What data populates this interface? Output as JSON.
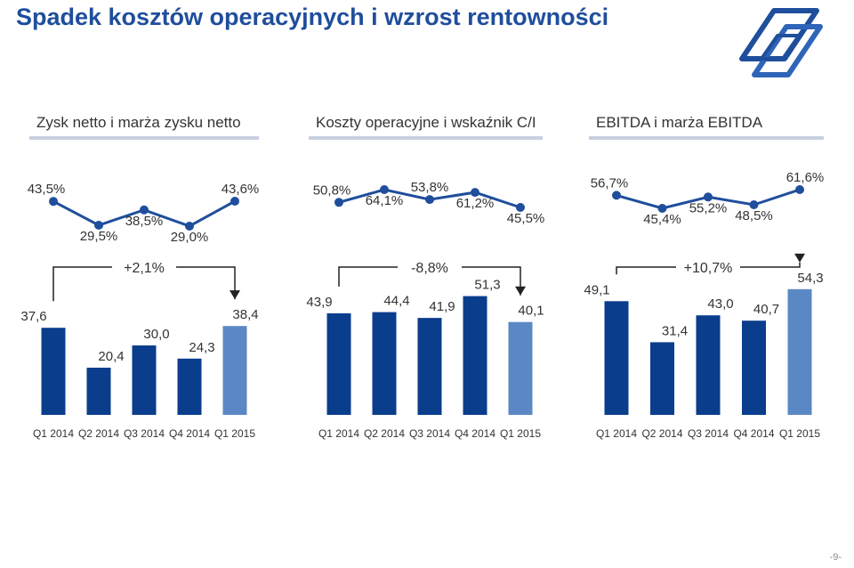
{
  "title": "Spadek kosztów operacyjnych i wzrost rentowności",
  "page_number": "-9-",
  "colors": {
    "title": "#1f4e9c",
    "bar_dark": "#0a3d8c",
    "bar_light": "#5b88c4",
    "line": "#1f4e9c",
    "rule": "#c7cfe0"
  },
  "panels": [
    {
      "title": "Zysk netto i marża zysku netto"
    },
    {
      "title": "Koszty operacyjne i wskaźnik C/I"
    },
    {
      "title": "EBITDA i marża EBITDA"
    }
  ],
  "chart_data": [
    {
      "type": "bar",
      "categories": [
        "Q1 2014",
        "Q2 2014",
        "Q3 2014",
        "Q4 2014",
        "Q1 2015"
      ],
      "values": [
        37.6,
        20.4,
        30.0,
        24.3,
        38.4
      ],
      "value_labels": [
        "37,6",
        "20,4",
        "30,0",
        "24,3",
        "38,4"
      ],
      "change_label": "+2,1%",
      "line": {
        "values": [
          43.5,
          29.5,
          38.5,
          29.0,
          43.6
        ],
        "labels": [
          "43,5%",
          "29,5%",
          "38,5%",
          "29,0%",
          "43,6%"
        ]
      }
    },
    {
      "type": "bar",
      "categories": [
        "Q1 2014",
        "Q2 2014",
        "Q3 2014",
        "Q4 2014",
        "Q1 2015"
      ],
      "values": [
        43.9,
        44.4,
        41.9,
        51.3,
        40.1
      ],
      "value_labels": [
        "43,9",
        "44,4",
        "41,9",
        "51,3",
        "40,1"
      ],
      "change_label": "-8,8%",
      "line": {
        "values": [
          50.8,
          64.1,
          53.8,
          61.2,
          45.5
        ],
        "labels": [
          "50,8%",
          "64,1%",
          "53,8%",
          "61,2%",
          "45,5%"
        ]
      }
    },
    {
      "type": "bar",
      "categories": [
        "Q1 2014",
        "Q2 2014",
        "Q3 2014",
        "Q4 2014",
        "Q1 2015"
      ],
      "values": [
        49.1,
        31.4,
        43.0,
        40.7,
        54.3
      ],
      "value_labels": [
        "49,1",
        "31,4",
        "43,0",
        "40,7",
        "54,3"
      ],
      "change_label": "+10,7%",
      "line": {
        "values": [
          56.7,
          45.4,
          55.2,
          48.5,
          61.6
        ],
        "labels": [
          "56,7%",
          "45,4%",
          "55,2%",
          "48,5%",
          "61,6%"
        ]
      }
    }
  ]
}
